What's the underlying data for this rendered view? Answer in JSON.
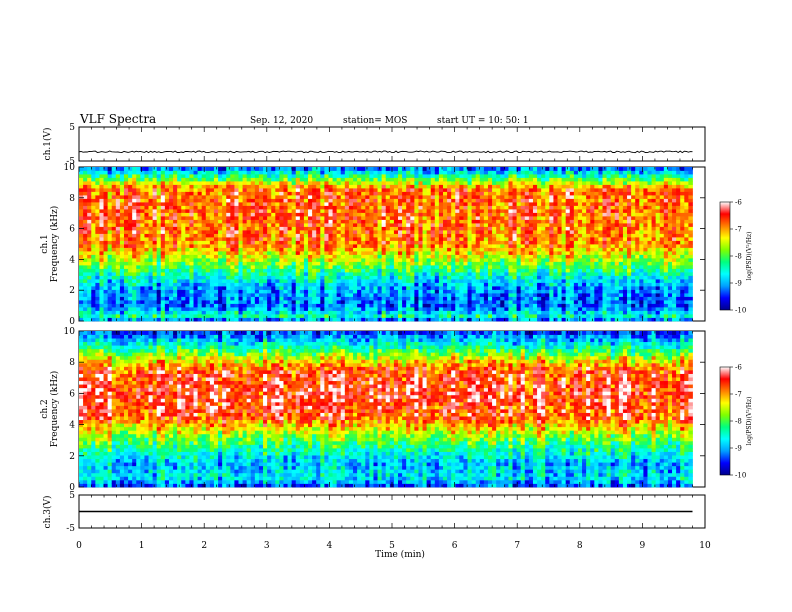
{
  "header": {
    "title": "VLF Spectra",
    "date": "Sep. 12, 2020",
    "station": "station= MOS",
    "start_ut": "start  UT  =   10: 50: 1"
  },
  "colors": {
    "spectrogram_scale": [
      "#00008c",
      "#0000ff",
      "#00a0ff",
      "#00ffff",
      "#00ff7f",
      "#7fff00",
      "#ffff00",
      "#ff7f00",
      "#ff0000",
      "#ffffff"
    ],
    "frame": "#000000",
    "trace": "#000000"
  },
  "chart_data": [
    {
      "type": "line",
      "panel": "ch1-voltage",
      "ylabel": "ch.1(V)",
      "ylim": [
        -5,
        5
      ],
      "yticks": [
        "5",
        "-5"
      ],
      "xlim": [
        0,
        10
      ],
      "series": [
        {
          "x": [
            0,
            9.8
          ],
          "values": [
            -2.3,
            -2.3
          ]
        }
      ]
    },
    {
      "type": "heatmap",
      "panel": "ch1-spectrogram",
      "ylabel": "ch.1",
      "ylabel2": "Frequency (kHz)",
      "ylim": [
        0,
        10
      ],
      "yticks": [
        "0",
        "2",
        "4",
        "6",
        "8",
        "10"
      ],
      "xlim": [
        0,
        10
      ],
      "data_x_extent": [
        0,
        9.8
      ],
      "colorbar": {
        "label": "log(PSD)(V²/Hz)",
        "range": [
          -10,
          -6
        ],
        "ticks": [
          "-6",
          "-7",
          "-8",
          "-9",
          "-10"
        ]
      },
      "profile": [
        {
          "f": 0.0,
          "level": -9.5
        },
        {
          "f": 0.3,
          "level": -8.4
        },
        {
          "f": 1.0,
          "level": -9.3
        },
        {
          "f": 2.0,
          "level": -9.1
        },
        {
          "f": 3.0,
          "level": -8.5
        },
        {
          "f": 4.0,
          "level": -7.6
        },
        {
          "f": 5.0,
          "level": -6.9
        },
        {
          "f": 7.0,
          "level": -6.7
        },
        {
          "f": 8.6,
          "level": -6.8
        },
        {
          "f": 9.2,
          "level": -7.9
        },
        {
          "f": 9.6,
          "level": -8.6
        },
        {
          "f": 10.0,
          "level": -9.4
        }
      ]
    },
    {
      "type": "heatmap",
      "panel": "ch2-spectrogram",
      "ylabel": "ch.2",
      "ylabel2": "Frequency (kHz)",
      "ylim": [
        0,
        10
      ],
      "yticks": [
        "0",
        "2",
        "4",
        "6",
        "8",
        "10"
      ],
      "xlim": [
        0,
        10
      ],
      "data_x_extent": [
        0,
        9.8
      ],
      "colorbar": {
        "label": "log(PSD)(V²/Hz)",
        "range": [
          -10,
          -6
        ],
        "ticks": [
          "-6",
          "-7",
          "-8",
          "-9",
          "-10"
        ]
      },
      "profile": [
        {
          "f": 0.0,
          "level": -9.4
        },
        {
          "f": 0.6,
          "level": -8.7
        },
        {
          "f": 1.5,
          "level": -8.9
        },
        {
          "f": 2.5,
          "level": -8.3
        },
        {
          "f": 3.5,
          "level": -7.5
        },
        {
          "f": 4.5,
          "level": -6.6
        },
        {
          "f": 6.0,
          "level": -6.4
        },
        {
          "f": 7.5,
          "level": -6.6
        },
        {
          "f": 8.3,
          "level": -7.5
        },
        {
          "f": 9.0,
          "level": -8.4
        },
        {
          "f": 9.6,
          "level": -9.0
        },
        {
          "f": 10.0,
          "level": -9.5
        }
      ]
    },
    {
      "type": "line",
      "panel": "ch3-voltage",
      "ylabel": "ch.3(V)",
      "ylim": [
        -5,
        5
      ],
      "yticks": [
        "5",
        "-5"
      ],
      "xlim": [
        0,
        10
      ],
      "series": [
        {
          "x": [
            0,
            9.8
          ],
          "values": [
            0,
            0
          ]
        }
      ]
    }
  ],
  "xaxis": {
    "label": "Time (min)",
    "ticks": [
      "0",
      "1",
      "2",
      "3",
      "4",
      "5",
      "6",
      "7",
      "8",
      "9",
      "10"
    ]
  }
}
